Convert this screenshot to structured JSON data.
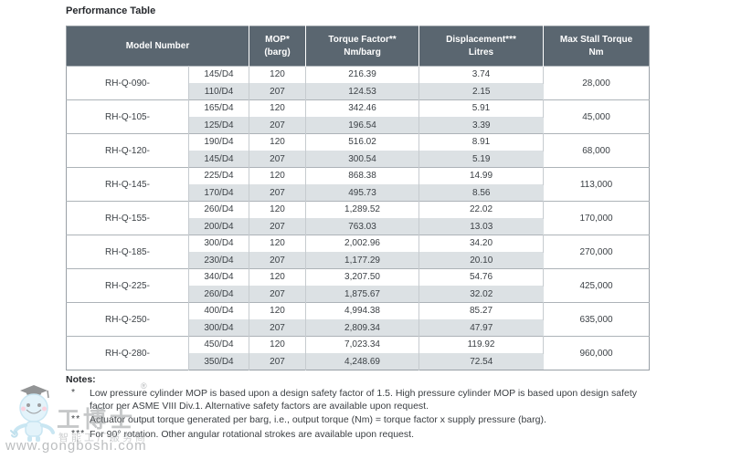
{
  "title": "Performance Table",
  "table": {
    "columns": [
      {
        "line1": "Model Number",
        "line2": ""
      },
      {
        "line1": "MOP*",
        "line2": "(barg)"
      },
      {
        "line1": "Torque Factor**",
        "line2": "Nm/barg"
      },
      {
        "line1": "Displacement***",
        "line2": "Litres"
      },
      {
        "line1": "Max Stall Torque",
        "line2": "Nm"
      }
    ],
    "groups": [
      {
        "model": "RH-Q-090-",
        "max_stall_torque": "28,000",
        "rows": [
          {
            "size": "145/D4",
            "mop": "120",
            "torque_factor": "216.39",
            "displacement": "3.74"
          },
          {
            "size": "110/D4",
            "mop": "207",
            "torque_factor": "124.53",
            "displacement": "2.15"
          }
        ]
      },
      {
        "model": "RH-Q-105-",
        "max_stall_torque": "45,000",
        "rows": [
          {
            "size": "165/D4",
            "mop": "120",
            "torque_factor": "342.46",
            "displacement": "5.91"
          },
          {
            "size": "125/D4",
            "mop": "207",
            "torque_factor": "196.54",
            "displacement": "3.39"
          }
        ]
      },
      {
        "model": "RH-Q-120-",
        "max_stall_torque": "68,000",
        "rows": [
          {
            "size": "190/D4",
            "mop": "120",
            "torque_factor": "516.02",
            "displacement": "8.91"
          },
          {
            "size": "145/D4",
            "mop": "207",
            "torque_factor": "300.54",
            "displacement": "5.19"
          }
        ]
      },
      {
        "model": "RH-Q-145-",
        "max_stall_torque": "113,000",
        "rows": [
          {
            "size": "225/D4",
            "mop": "120",
            "torque_factor": "868.38",
            "displacement": "14.99"
          },
          {
            "size": "170/D4",
            "mop": "207",
            "torque_factor": "495.73",
            "displacement": "8.56"
          }
        ]
      },
      {
        "model": "RH-Q-155-",
        "max_stall_torque": "170,000",
        "rows": [
          {
            "size": "260/D4",
            "mop": "120",
            "torque_factor": "1,289.52",
            "displacement": "22.02"
          },
          {
            "size": "200/D4",
            "mop": "207",
            "torque_factor": "763.03",
            "displacement": "13.03"
          }
        ]
      },
      {
        "model": "RH-Q-185-",
        "max_stall_torque": "270,000",
        "rows": [
          {
            "size": "300/D4",
            "mop": "120",
            "torque_factor": "2,002.96",
            "displacement": "34.20"
          },
          {
            "size": "230/D4",
            "mop": "207",
            "torque_factor": "1,177.29",
            "displacement": "20.10"
          }
        ]
      },
      {
        "model": "RH-Q-225-",
        "max_stall_torque": "425,000",
        "rows": [
          {
            "size": "340/D4",
            "mop": "120",
            "torque_factor": "3,207.50",
            "displacement": "54.76"
          },
          {
            "size": "260/D4",
            "mop": "207",
            "torque_factor": "1,875.67",
            "displacement": "32.02"
          }
        ]
      },
      {
        "model": "RH-Q-250-",
        "max_stall_torque": "635,000",
        "rows": [
          {
            "size": "400/D4",
            "mop": "120",
            "torque_factor": "4,994.38",
            "displacement": "85.27"
          },
          {
            "size": "300/D4",
            "mop": "207",
            "torque_factor": "2,809.34",
            "displacement": "47.97"
          }
        ]
      },
      {
        "model": "RH-Q-280-",
        "max_stall_torque": "960,000",
        "rows": [
          {
            "size": "450/D4",
            "mop": "120",
            "torque_factor": "7,023.34",
            "displacement": "119.92"
          },
          {
            "size": "350/D4",
            "mop": "207",
            "torque_factor": "4,248.69",
            "displacement": "72.54"
          }
        ]
      }
    ]
  },
  "notes": {
    "heading": "Notes:",
    "items": [
      {
        "marker": "*",
        "text": "Low pressure cylinder MOP is based upon a design safety factor of 1.5. High pressure cylinder MOP is based upon design safety factor per ASME VIII Div.1. Alternative safety factors are available upon request."
      },
      {
        "marker": "**",
        "text": "Actuator output torque generated per barg, i.e., output torque (Nm) = torque factor x supply pressure (barg)."
      },
      {
        "marker": "***",
        "text": "For 90° rotation. Other angular rotational strokes are available upon request."
      }
    ]
  },
  "watermark": {
    "brand": "工博士",
    "tagline": "智能工厂服务商",
    "url": "www.gongboshi.com",
    "registered": "®"
  },
  "colors": {
    "header_bg": "#5a6670",
    "header_text": "#ffffff",
    "row_shaded_bg": "#dce1e4",
    "table_border": "#99a0a6",
    "body_text": "#3c4146"
  }
}
